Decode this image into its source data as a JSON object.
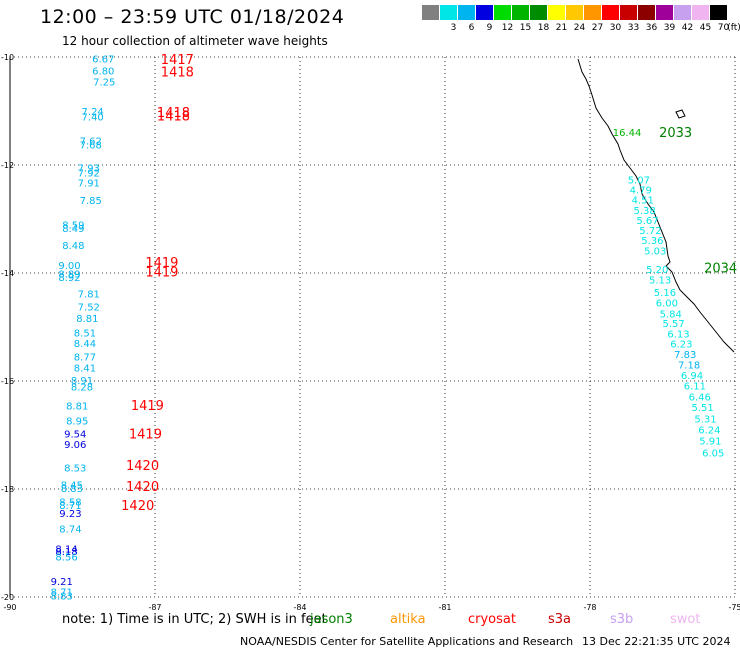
{
  "header": {
    "title": "12:00 – 23:59 UTC 01/18/2024",
    "subtitle": "12 hour collection of altimeter wave heights"
  },
  "legend": {
    "unit": "(ft)",
    "entries": [
      {
        "label": "",
        "color": "#808080"
      },
      {
        "label": "3",
        "color": "#00e6e6"
      },
      {
        "label": "6",
        "color": "#00b4f0"
      },
      {
        "label": "9",
        "color": "#0000e0"
      },
      {
        "label": "12",
        "color": "#00dc00"
      },
      {
        "label": "15",
        "color": "#00b400"
      },
      {
        "label": "18",
        "color": "#008c00"
      },
      {
        "label": "21",
        "color": "#ffff00"
      },
      {
        "label": "24",
        "color": "#ffc800"
      },
      {
        "label": "27",
        "color": "#ff9600"
      },
      {
        "label": "30",
        "color": "#ff0000"
      },
      {
        "label": "33",
        "color": "#c80000"
      },
      {
        "label": "36",
        "color": "#8c0000"
      },
      {
        "label": "39",
        "color": "#a0009a"
      },
      {
        "label": "42",
        "color": "#c8a0f0"
      },
      {
        "label": "45",
        "color": "#f0b4f0"
      },
      {
        "label": "70",
        "color": "#000000"
      }
    ]
  },
  "map": {
    "lon_range": [
      -90,
      -75
    ],
    "lat_range": [
      -20,
      -10
    ],
    "x_ticks": [
      "-90",
      "-87",
      "-84",
      "-81",
      "-78",
      "-75"
    ],
    "y_ticks": [
      "-10",
      "-12",
      "-14",
      "-16",
      "-18",
      "-20"
    ],
    "passes": [
      {
        "label": "1417",
        "lon": -86.88,
        "lat": -10.04,
        "color": "#ff0000"
      },
      {
        "label": "1418",
        "lon": -86.88,
        "lat": -10.27,
        "color": "#ff0000"
      },
      {
        "label": "1418",
        "lon": -86.96,
        "lat": -11.02,
        "color": "#ff0000"
      },
      {
        "label": "1418",
        "lon": -86.96,
        "lat": -11.08,
        "color": "#ff0000"
      },
      {
        "label": "1419",
        "lon": -87.2,
        "lat": -13.8,
        "color": "#ff0000"
      },
      {
        "label": "1419",
        "lon": -87.2,
        "lat": -13.97,
        "color": "#ff0000"
      },
      {
        "label": "1419",
        "lon": -87.5,
        "lat": -16.44,
        "color": "#ff0000"
      },
      {
        "label": "1419",
        "lon": -87.54,
        "lat": -16.97,
        "color": "#ff0000"
      },
      {
        "label": "1420",
        "lon": -87.6,
        "lat": -17.56,
        "color": "#ff0000"
      },
      {
        "label": "1420",
        "lon": -87.6,
        "lat": -17.94,
        "color": "#ff0000"
      },
      {
        "label": "1420",
        "lon": -87.7,
        "lat": -18.3,
        "color": "#ff0000"
      },
      {
        "label": "2033",
        "lon": -76.57,
        "lat": -11.39,
        "color": "#008000"
      },
      {
        "label": "2034",
        "lon": -75.64,
        "lat": -13.9,
        "color": "#008000"
      }
    ],
    "observations": [
      {
        "v": "6.67",
        "lon": -88.3,
        "lat": -10.03,
        "color": "#00b4f0"
      },
      {
        "v": "6.80",
        "lon": -88.3,
        "lat": -10.25,
        "color": "#00b4f0"
      },
      {
        "v": "7.25",
        "lon": -88.28,
        "lat": -10.45,
        "color": "#00b4f0"
      },
      {
        "v": "7.24",
        "lon": -88.52,
        "lat": -11.0,
        "color": "#00b4f0"
      },
      {
        "v": "7.40",
        "lon": -88.52,
        "lat": -11.1,
        "color": "#00b4f0"
      },
      {
        "v": "7.62",
        "lon": -88.56,
        "lat": -11.55,
        "color": "#00b4f0"
      },
      {
        "v": "7.68",
        "lon": -88.56,
        "lat": -11.62,
        "color": "#00b4f0"
      },
      {
        "v": "7.93",
        "lon": -88.6,
        "lat": -12.05,
        "color": "#00b4f0"
      },
      {
        "v": "7.92",
        "lon": -88.6,
        "lat": -12.14,
        "color": "#00b4f0"
      },
      {
        "v": "7.91",
        "lon": -88.6,
        "lat": -12.32,
        "color": "#00b4f0"
      },
      {
        "v": "7.85",
        "lon": -88.56,
        "lat": -12.65,
        "color": "#00b4f0"
      },
      {
        "v": "8.59",
        "lon": -88.92,
        "lat": -13.1,
        "color": "#00b4f0"
      },
      {
        "v": "8.49",
        "lon": -88.92,
        "lat": -13.17,
        "color": "#00b4f0"
      },
      {
        "v": "8.48",
        "lon": -88.92,
        "lat": -13.48,
        "color": "#00b4f0"
      },
      {
        "v": "9.00",
        "lon": -89.0,
        "lat": -13.85,
        "color": "#00b4f0"
      },
      {
        "v": "8.89",
        "lon": -89.0,
        "lat": -14.01,
        "color": "#00b4f0"
      },
      {
        "v": "8.92",
        "lon": -89.0,
        "lat": -14.07,
        "color": "#00b4f0"
      },
      {
        "v": "7.81",
        "lon": -88.6,
        "lat": -14.38,
        "color": "#00b4f0"
      },
      {
        "v": "7.52",
        "lon": -88.6,
        "lat": -14.62,
        "color": "#00b4f0"
      },
      {
        "v": "8.81",
        "lon": -88.63,
        "lat": -14.83,
        "color": "#00b4f0"
      },
      {
        "v": "8.51",
        "lon": -88.68,
        "lat": -15.1,
        "color": "#00b4f0"
      },
      {
        "v": "8.44",
        "lon": -88.68,
        "lat": -15.3,
        "color": "#00b4f0"
      },
      {
        "v": "8.77",
        "lon": -88.68,
        "lat": -15.55,
        "color": "#00b4f0"
      },
      {
        "v": "8.41",
        "lon": -88.68,
        "lat": -15.75,
        "color": "#00b4f0"
      },
      {
        "v": "8.91",
        "lon": -88.74,
        "lat": -15.98,
        "color": "#00b4f0"
      },
      {
        "v": "8.28",
        "lon": -88.74,
        "lat": -16.1,
        "color": "#00b4f0"
      },
      {
        "v": "8.81",
        "lon": -88.84,
        "lat": -16.45,
        "color": "#00b4f0"
      },
      {
        "v": "8.95",
        "lon": -88.84,
        "lat": -16.73,
        "color": "#00b4f0"
      },
      {
        "v": "9.54",
        "lon": -88.88,
        "lat": -16.97,
        "color": "#0000e0"
      },
      {
        "v": "9.06",
        "lon": -88.88,
        "lat": -17.17,
        "color": "#0000e0"
      },
      {
        "v": "8.53",
        "lon": -88.88,
        "lat": -17.6,
        "color": "#00b4f0"
      },
      {
        "v": "8.45",
        "lon": -88.95,
        "lat": -17.92,
        "color": "#00b4f0"
      },
      {
        "v": "8.83",
        "lon": -88.95,
        "lat": -17.98,
        "color": "#00b4f0"
      },
      {
        "v": "8.58",
        "lon": -88.98,
        "lat": -18.23,
        "color": "#00b4f0"
      },
      {
        "v": "8.71",
        "lon": -88.98,
        "lat": -18.3,
        "color": "#00b4f0"
      },
      {
        "v": "9.23",
        "lon": -88.98,
        "lat": -18.44,
        "color": "#0000e0"
      },
      {
        "v": "8.74",
        "lon": -88.98,
        "lat": -18.73,
        "color": "#00b4f0"
      },
      {
        "v": "8.14",
        "lon": -89.06,
        "lat": -19.1,
        "color": "#0000e0"
      },
      {
        "v": "8.18",
        "lon": -89.06,
        "lat": -19.15,
        "color": "#0000e0"
      },
      {
        "v": "8.56",
        "lon": -89.06,
        "lat": -19.25,
        "color": "#00b4f0"
      },
      {
        "v": "9.21",
        "lon": -89.16,
        "lat": -19.7,
        "color": "#0000e0"
      },
      {
        "v": "8.71",
        "lon": -89.16,
        "lat": -19.9,
        "color": "#00b4f0"
      },
      {
        "v": "8.83",
        "lon": -89.16,
        "lat": -19.97,
        "color": "#00b4f0"
      },
      {
        "v": "16.44",
        "lon": -77.53,
        "lat": -11.39,
        "color": "#00b400"
      },
      {
        "v": "5.07",
        "lon": -77.22,
        "lat": -12.27,
        "color": "#00e6e6"
      },
      {
        "v": "4.79",
        "lon": -77.18,
        "lat": -12.45,
        "color": "#00e6e6"
      },
      {
        "v": "4.51",
        "lon": -77.14,
        "lat": -12.64,
        "color": "#00e6e6"
      },
      {
        "v": "5.38",
        "lon": -77.1,
        "lat": -12.83,
        "color": "#00e6e6"
      },
      {
        "v": "5.67",
        "lon": -77.04,
        "lat": -13.02,
        "color": "#00e6e6"
      },
      {
        "v": "5.72",
        "lon": -76.98,
        "lat": -13.2,
        "color": "#00e6e6"
      },
      {
        "v": "5.36",
        "lon": -76.94,
        "lat": -13.39,
        "color": "#00e6e6"
      },
      {
        "v": "5.03",
        "lon": -76.88,
        "lat": -13.58,
        "color": "#00e6e6"
      },
      {
        "v": "5.20",
        "lon": -76.84,
        "lat": -13.93,
        "color": "#00e6e6"
      },
      {
        "v": "5.13",
        "lon": -76.78,
        "lat": -14.12,
        "color": "#00e6e6"
      },
      {
        "v": "5.16",
        "lon": -76.68,
        "lat": -14.35,
        "color": "#00e6e6"
      },
      {
        "v": "6.00",
        "lon": -76.64,
        "lat": -14.55,
        "color": "#00e6e6"
      },
      {
        "v": "5.84",
        "lon": -76.56,
        "lat": -14.75,
        "color": "#00e6e6"
      },
      {
        "v": "5.57",
        "lon": -76.5,
        "lat": -14.93,
        "color": "#00e6e6"
      },
      {
        "v": "6.13",
        "lon": -76.4,
        "lat": -15.12,
        "color": "#00e6e6"
      },
      {
        "v": "6.23",
        "lon": -76.34,
        "lat": -15.31,
        "color": "#00e6e6"
      },
      {
        "v": "7.83",
        "lon": -76.26,
        "lat": -15.5,
        "color": "#00b4f0"
      },
      {
        "v": "7.18",
        "lon": -76.18,
        "lat": -15.69,
        "color": "#00b4f0"
      },
      {
        "v": "6.94",
        "lon": -76.12,
        "lat": -15.89,
        "color": "#00e6e6"
      },
      {
        "v": "6.11",
        "lon": -76.06,
        "lat": -16.08,
        "color": "#00e6e6"
      },
      {
        "v": "6.46",
        "lon": -75.96,
        "lat": -16.29,
        "color": "#00e6e6"
      },
      {
        "v": "5.51",
        "lon": -75.9,
        "lat": -16.48,
        "color": "#00e6e6"
      },
      {
        "v": "5.31",
        "lon": -75.84,
        "lat": -16.69,
        "color": "#00e6e6"
      },
      {
        "v": "6.24",
        "lon": -75.76,
        "lat": -16.9,
        "color": "#00e6e6"
      },
      {
        "v": "5.91",
        "lon": -75.74,
        "lat": -17.1,
        "color": "#00e6e6"
      },
      {
        "v": "6.05",
        "lon": -75.68,
        "lat": -17.32,
        "color": "#00e6e6"
      }
    ]
  },
  "footer": {
    "note": "note: 1) Time is in UTC; 2) SWH is in feet",
    "satellites": [
      {
        "name": "jason3",
        "color": "#008000"
      },
      {
        "name": "altika",
        "color": "#ff9600"
      },
      {
        "name": "cryosat",
        "color": "#ff0000"
      },
      {
        "name": "s3a",
        "color": "#c80000"
      },
      {
        "name": "s3b",
        "color": "#c8a0f0"
      },
      {
        "name": "swot",
        "color": "#f0b4f0"
      }
    ],
    "credit": "NOAA/NESDIS Center for Satellite Applications and Research",
    "timestamp": "13 Dec 22:21:35 UTC 2024"
  }
}
